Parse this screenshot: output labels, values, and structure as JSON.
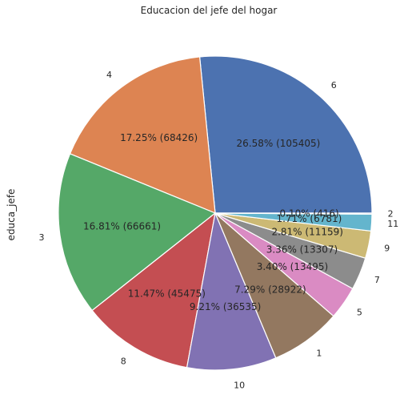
{
  "chart_data": {
    "type": "pie",
    "title": "Educacion del jefe del hogar",
    "ylabel": "educa_jefe",
    "start_angle_deg": 0,
    "direction": "counterclockwise",
    "slices": [
      {
        "label": "6",
        "value": 105405,
        "pct_text": "26.58%  (105405)",
        "color": "#4c72b0"
      },
      {
        "label": "4",
        "value": 68426,
        "pct_text": "17.25%  (68426)",
        "color": "#dd8452"
      },
      {
        "label": "3",
        "value": 66661,
        "pct_text": "16.81%  (66661)",
        "color": "#55a868"
      },
      {
        "label": "8",
        "value": 45475,
        "pct_text": "11.47%  (45475)",
        "color": "#c44e52"
      },
      {
        "label": "10",
        "value": 36535,
        "pct_text": "9.21%  (36535)",
        "color": "#8172b3"
      },
      {
        "label": "1",
        "value": 28922,
        "pct_text": "7.29%  (28922)",
        "color": "#937860"
      },
      {
        "label": "5",
        "value": 13495,
        "pct_text": "3.40%  (13495)",
        "color": "#da8bc3"
      },
      {
        "label": "7",
        "value": 13307,
        "pct_text": "3.36%  (13307)",
        "color": "#8c8c8c"
      },
      {
        "label": "9",
        "value": 11159,
        "pct_text": "2.81%  (11159)",
        "color": "#ccb974"
      },
      {
        "label": "11",
        "value": 6781,
        "pct_text": "1.71%  (6781)",
        "color": "#64b5cd"
      },
      {
        "label": "2",
        "value": 416,
        "pct_text": "0.10%  (416)",
        "color": "#4c72b0"
      }
    ]
  }
}
